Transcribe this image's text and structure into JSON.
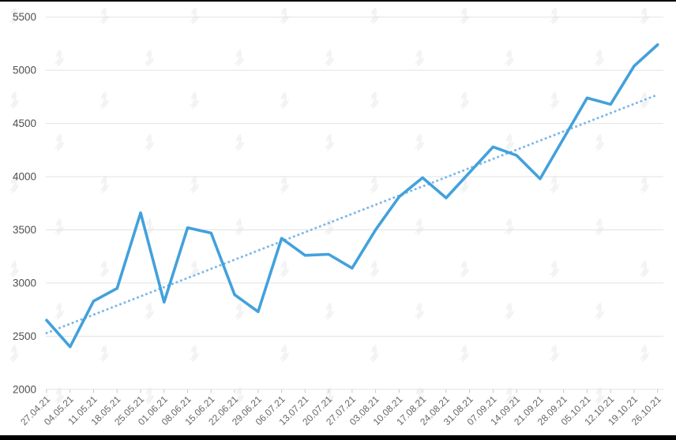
{
  "chart_data": {
    "type": "line",
    "title": "",
    "x": [
      "27.04.21",
      "04.05.21",
      "11.05.21",
      "18.05.21",
      "25.05.21",
      "01.06.21",
      "08.06.21",
      "15.06.21",
      "22.06.21",
      "29.06.21",
      "06.07.21",
      "13.07.21",
      "20.07.21",
      "27.07.21",
      "03.08.21",
      "10.08.21",
      "17.08.21",
      "24.08.21",
      "31.08.21",
      "07.09.21",
      "14.09.21",
      "21.09.21",
      "28.09.21",
      "05.10.21",
      "12.10.21",
      "19.10.21",
      "26.10.21"
    ],
    "series": [
      {
        "name": "price-line",
        "values": [
          2650,
          2400,
          2830,
          2950,
          3660,
          2820,
          3520,
          3470,
          2890,
          2730,
          3420,
          3260,
          3270,
          3140,
          3500,
          3810,
          3990,
          3800,
          4040,
          4280,
          4200,
          3980,
          4360,
          4740,
          4680,
          5040,
          5240
        ],
        "color": "#42a1dc",
        "style": "solid"
      }
    ],
    "trendline": {
      "name": "linear-trend",
      "start_value": 2530,
      "end_value": 4770,
      "color": "#7db7e6",
      "style": "dotted"
    },
    "yticks": [
      2000,
      2500,
      3000,
      3500,
      4000,
      4500,
      5000,
      5500
    ],
    "ylim": [
      2000,
      5500
    ],
    "xlabel": "",
    "ylabel": "",
    "grid": true,
    "legend_position": "none",
    "x_label_rotation_deg": -45
  },
  "colors": {
    "background": "#ffffff",
    "grid_line": "#e2e2e2",
    "axis_tick": "#c9c9c9",
    "y_label_text": "#4f4f4f",
    "x_label_text": "#666666",
    "watermark": "#f3f3f3",
    "frame_bar": "#000000"
  },
  "watermark": {
    "icon": "forklog-logo-watermark"
  }
}
